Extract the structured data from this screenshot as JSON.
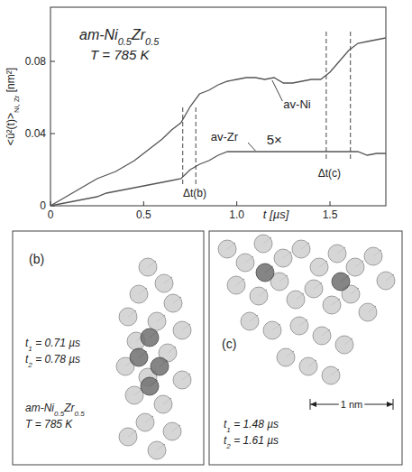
{
  "chart_data": {
    "type": "line",
    "xlabel": "t [µs]",
    "ylabel": "<ū²(t)>Ni, Zr [nm²]",
    "x": [
      0,
      0.05,
      0.1,
      0.15,
      0.2,
      0.25,
      0.3,
      0.35,
      0.4,
      0.45,
      0.5,
      0.55,
      0.6,
      0.65,
      0.7,
      0.75,
      0.8,
      0.85,
      0.9,
      0.95,
      1.0,
      1.05,
      1.1,
      1.15,
      1.2,
      1.25,
      1.3,
      1.35,
      1.4,
      1.45,
      1.5,
      1.55,
      1.6,
      1.65,
      1.7,
      1.75,
      1.8
    ],
    "series": [
      {
        "name": "av-Ni",
        "color": "#555555",
        "values": [
          0,
          0.003,
          0.006,
          0.009,
          0.012,
          0.015,
          0.017,
          0.019,
          0.022,
          0.025,
          0.029,
          0.033,
          0.037,
          0.042,
          0.046,
          0.055,
          0.062,
          0.064,
          0.067,
          0.069,
          0.07,
          0.071,
          0.071,
          0.07,
          0.071,
          0.068,
          0.068,
          0.069,
          0.07,
          0.07,
          0.074,
          0.08,
          0.086,
          0.09,
          0.091,
          0.092,
          0.093
        ]
      },
      {
        "name": "av-Zr",
        "color": "#555555",
        "values": [
          0,
          0.001,
          0.002,
          0.003,
          0.004,
          0.005,
          0.007,
          0.008,
          0.009,
          0.01,
          0.011,
          0.012,
          0.013,
          0.014,
          0.015,
          0.02,
          0.023,
          0.025,
          0.028,
          0.03,
          0.03,
          0.03,
          0.03,
          0.03,
          0.03,
          0.03,
          0.03,
          0.03,
          0.03,
          0.03,
          0.03,
          0.03,
          0.03,
          0.03,
          0.028,
          0.029,
          0.029
        ]
      }
    ],
    "xlim": [
      0,
      1.8
    ],
    "ylim": [
      0,
      0.11
    ],
    "xticks": [
      0,
      0.5,
      {
        "value": 1,
        "label": "1.0"
      },
      1.5
    ],
    "yticks": [
      0,
      0.04,
      0.08
    ],
    "annotations": [
      "am-Ni0.5Zr0.5",
      "T = 785 K",
      "5×"
    ],
    "intervals": [
      {
        "label": "Δt(b)",
        "t1": 0.71,
        "t2": 0.78,
        "ymin": 0.012,
        "ymax": 0.055
      },
      {
        "label": "Δt(c)",
        "t1": 1.48,
        "t2": 1.61,
        "ymin": 0.026,
        "ymax": 0.097
      }
    ]
  },
  "panels": [
    {
      "letter": "(b)",
      "texts": [
        "t1 = 0.71 µs",
        "t2 = 0.78 µs",
        "am-Ni0.5Zr0.5",
        "T = 785 K"
      ]
    },
    {
      "letter": "(c)",
      "texts": [
        "t1 = 1.48 µs",
        "t2 = 1.61 µs"
      ],
      "scale_bar": "1 nm"
    }
  ]
}
